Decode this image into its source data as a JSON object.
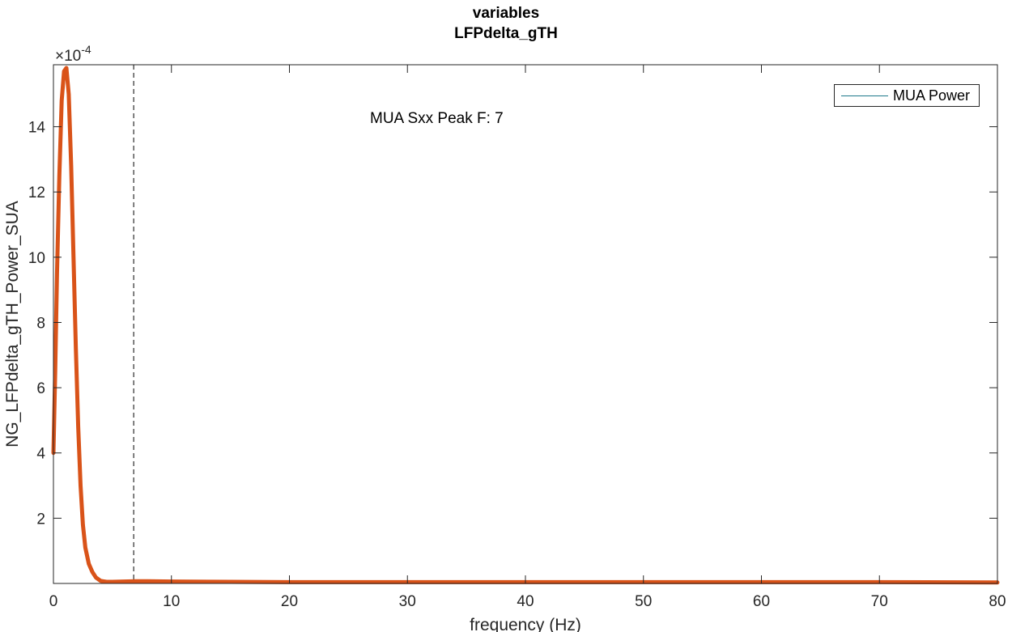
{
  "chart_data": {
    "type": "line",
    "title": "variables",
    "subtitle": "LFPdelta_gTH",
    "xlabel": "frequency (Hz)",
    "ylabel": "NG_LFPdelta_gTH_Power_SUA",
    "y_exponent_label": "×10",
    "y_exponent_power": "-4",
    "xlim": [
      0,
      80
    ],
    "ylim": [
      0,
      0.00159
    ],
    "x_ticks": [
      0,
      10,
      20,
      30,
      40,
      50,
      60,
      70,
      80
    ],
    "x_tick_labels": [
      "0",
      "10",
      "20",
      "30",
      "40",
      "50",
      "60",
      "70",
      "80"
    ],
    "y_ticks": [
      0.0002,
      0.0004,
      0.0006,
      0.0008,
      0.001,
      0.0012,
      0.0014
    ],
    "y_tick_labels": [
      "2",
      "4",
      "6",
      "8",
      "10",
      "12",
      "14"
    ],
    "grid": false,
    "legend": {
      "entries": [
        "MUA Power"
      ],
      "location": "top-right"
    },
    "annotation": "MUA Sxx Peak F: 7",
    "vline": {
      "x": 6.8,
      "style": "dashed",
      "color": "#000000"
    },
    "series": [
      {
        "name": "MUA Power",
        "color": "#d95319",
        "x": [
          0,
          0.15,
          0.3,
          0.5,
          0.7,
          0.9,
          1.1,
          1.3,
          1.5,
          1.7,
          1.9,
          2.1,
          2.3,
          2.5,
          2.7,
          3.0,
          3.3,
          3.6,
          4.0,
          4.5,
          5,
          6,
          7,
          8,
          10,
          15,
          20,
          30,
          40,
          50,
          60,
          70,
          80
        ],
        "values": [
          0.0004,
          0.00065,
          0.00095,
          0.00125,
          0.00148,
          0.00157,
          0.00158,
          0.0015,
          0.00128,
          0.001,
          0.00072,
          0.00048,
          0.0003,
          0.00018,
          0.00011,
          6e-05,
          3.5e-05,
          1.8e-05,
          8e-06,
          5e-06,
          5e-06,
          6e-06,
          7e-06,
          7e-06,
          6e-06,
          5e-06,
          4e-06,
          4e-06,
          4e-06,
          4e-06,
          4e-06,
          4e-06,
          3e-06
        ]
      }
    ]
  }
}
